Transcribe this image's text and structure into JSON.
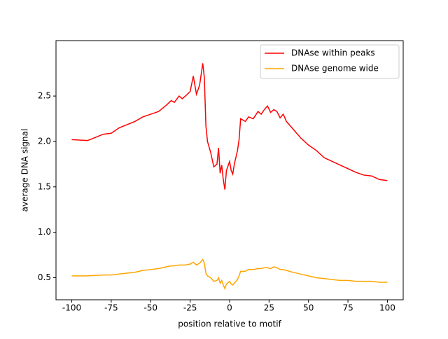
{
  "chart_data": {
    "type": "line",
    "xlabel": "position relative to motif",
    "ylabel": "average DNA signal",
    "x": [
      -100,
      -90,
      -80,
      -75,
      -70,
      -60,
      -55,
      -50,
      -45,
      -40,
      -37,
      -35,
      -32,
      -30,
      -28,
      -25,
      -23,
      -21,
      -19,
      -17,
      -16,
      -15,
      -14,
      -12,
      -10,
      -8,
      -7,
      -6,
      -5,
      -4,
      -3,
      -2,
      0,
      1,
      2,
      3,
      5,
      6,
      7,
      10,
      12,
      15,
      18,
      20,
      22,
      24,
      26,
      28,
      30,
      32,
      34,
      36,
      40,
      45,
      50,
      55,
      60,
      65,
      70,
      75,
      80,
      85,
      90,
      95,
      100
    ],
    "series": [
      {
        "name": "DNAse within peaks",
        "color": "#ff0000",
        "values": [
          2.02,
          2.01,
          2.08,
          2.09,
          2.15,
          2.22,
          2.27,
          2.3,
          2.33,
          2.4,
          2.45,
          2.43,
          2.5,
          2.47,
          2.5,
          2.55,
          2.72,
          2.52,
          2.62,
          2.86,
          2.7,
          2.17,
          2.0,
          1.88,
          1.72,
          1.75,
          1.93,
          1.65,
          1.74,
          1.58,
          1.47,
          1.68,
          1.78,
          1.68,
          1.64,
          1.75,
          1.9,
          2.02,
          2.25,
          2.22,
          2.27,
          2.25,
          2.33,
          2.3,
          2.35,
          2.39,
          2.32,
          2.35,
          2.33,
          2.26,
          2.3,
          2.22,
          2.14,
          2.04,
          1.96,
          1.9,
          1.82,
          1.78,
          1.74,
          1.7,
          1.66,
          1.63,
          1.62,
          1.58,
          1.57
        ]
      },
      {
        "name": "DNAse genome wide",
        "color": "#ffa500",
        "values": [
          0.52,
          0.52,
          0.53,
          0.53,
          0.54,
          0.56,
          0.58,
          0.59,
          0.6,
          0.62,
          0.63,
          0.63,
          0.64,
          0.64,
          0.64,
          0.65,
          0.67,
          0.64,
          0.66,
          0.7,
          0.66,
          0.55,
          0.52,
          0.5,
          0.46,
          0.47,
          0.5,
          0.44,
          0.47,
          0.42,
          0.38,
          0.43,
          0.46,
          0.43,
          0.42,
          0.44,
          0.48,
          0.52,
          0.57,
          0.57,
          0.59,
          0.59,
          0.6,
          0.6,
          0.61,
          0.61,
          0.6,
          0.62,
          0.61,
          0.59,
          0.59,
          0.58,
          0.56,
          0.54,
          0.52,
          0.5,
          0.49,
          0.48,
          0.47,
          0.47,
          0.46,
          0.46,
          0.46,
          0.45,
          0.45
        ]
      }
    ],
    "xlim": [
      -110,
      110
    ],
    "ylim": [
      0.257,
      3.11
    ],
    "xticks": [
      -100,
      -75,
      -50,
      -25,
      0,
      25,
      50,
      75,
      100
    ],
    "yticks": [
      0.5,
      {
        "value": 1.0,
        "label": "1.0"
      },
      1.5,
      {
        "value": 2.0,
        "label": "2.0"
      },
      2.5
    ],
    "legend": "upper right"
  }
}
